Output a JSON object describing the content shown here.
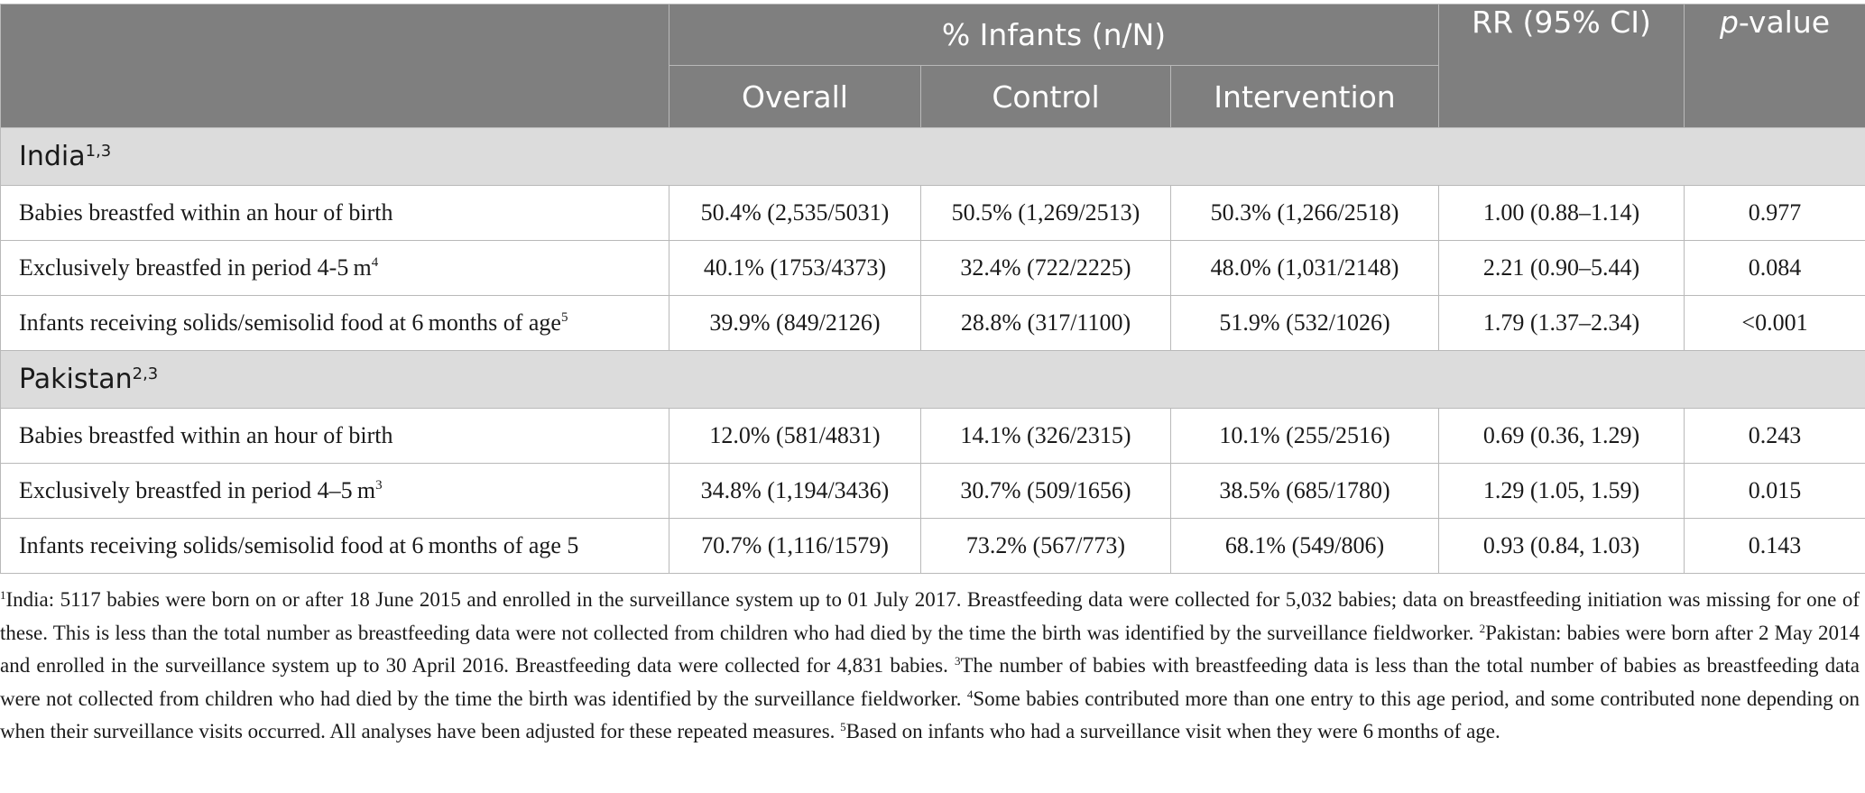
{
  "table": {
    "header": {
      "group_label": "% Infants (n/N)",
      "sub_columns": [
        "Overall",
        "Control",
        "Intervention"
      ],
      "rr_label": "RR (95% CI)",
      "pvalue_italic": "p",
      "pvalue_rest": "-value"
    },
    "sections": [
      {
        "name": "India",
        "name_sup": "1,3",
        "rows": [
          {
            "label": "Babies breastfed within an hour of birth",
            "label_sup": "",
            "overall": "50.4% (2,535/5031)",
            "control": "50.5% (1,269/2513)",
            "intervention": "50.3% (1,266/2518)",
            "rr": "1.00 (0.88–1.14)",
            "p": "0.977"
          },
          {
            "label": "Exclusively breastfed in period 4-5 m",
            "label_sup": "4",
            "overall": "40.1% (1753/4373)",
            "control": "32.4% (722/2225)",
            "intervention": "48.0% (1,031/2148)",
            "rr": "2.21 (0.90–5.44)",
            "p": "0.084"
          },
          {
            "label": "Infants receiving solids/semisolid food at 6 months of age",
            "label_sup": "5",
            "overall": "39.9% (849/2126)",
            "control": "28.8% (317/1100)",
            "intervention": "51.9% (532/1026)",
            "rr": "1.79 (1.37–2.34)",
            "p": "<0.001"
          }
        ]
      },
      {
        "name": "Pakistan",
        "name_sup": "2,3",
        "rows": [
          {
            "label": "Babies breastfed within an hour of birth",
            "label_sup": "",
            "overall": "12.0% (581/4831)",
            "control": "14.1% (326/2315)",
            "intervention": "10.1% (255/2516)",
            "rr": "0.69 (0.36, 1.29)",
            "p": "0.243"
          },
          {
            "label": "Exclusively breastfed in period 4–5 m",
            "label_sup": "3",
            "overall": "34.8% (1,194/3436)",
            "control": "30.7% (509/1656)",
            "intervention": "38.5% (685/1780)",
            "rr": "1.29 (1.05, 1.59)",
            "p": "0.015"
          },
          {
            "label": "Infants receiving solids/semisolid food at 6 months of age 5",
            "label_sup": "",
            "overall": "70.7% (1,116/1579)",
            "control": "73.2% (567/773)",
            "intervention": "68.1% (549/806)",
            "rr": "0.93 (0.84, 1.03)",
            "p": "0.143"
          }
        ]
      }
    ]
  },
  "footnotes": [
    {
      "num": "1",
      "text": "India: 5117 babies were born on or after 18 June 2015 and enrolled in the surveillance system up to 01 July 2017. Breastfeeding data were collected for 5,032 babies; data on breastfeeding initiation was missing for one of these. This is less than the total number as breastfeeding data were not collected from children who had died by the time the birth was identified by the surveillance fieldworker. "
    },
    {
      "num": "2",
      "text": "Pakistan: babies were born after 2 May 2014 and enrolled in the surveillance system up to 30 April 2016. Breastfeeding data were collected for 4,831 babies. "
    },
    {
      "num": "3",
      "text": "The number of babies with breastfeeding data is less than the total number of babies as breastfeeding data were not collected from children who had died by the time the birth was identified by the surveillance fieldworker. "
    },
    {
      "num": "4",
      "text": "Some babies contributed more than one entry to this age period, and some contributed none depending on when their surveillance visits occurred. All analyses have been adjusted for these repeated measures. "
    },
    {
      "num": "5",
      "text": "Based on infants who had a surveillance visit when they were 6 months of age."
    }
  ]
}
